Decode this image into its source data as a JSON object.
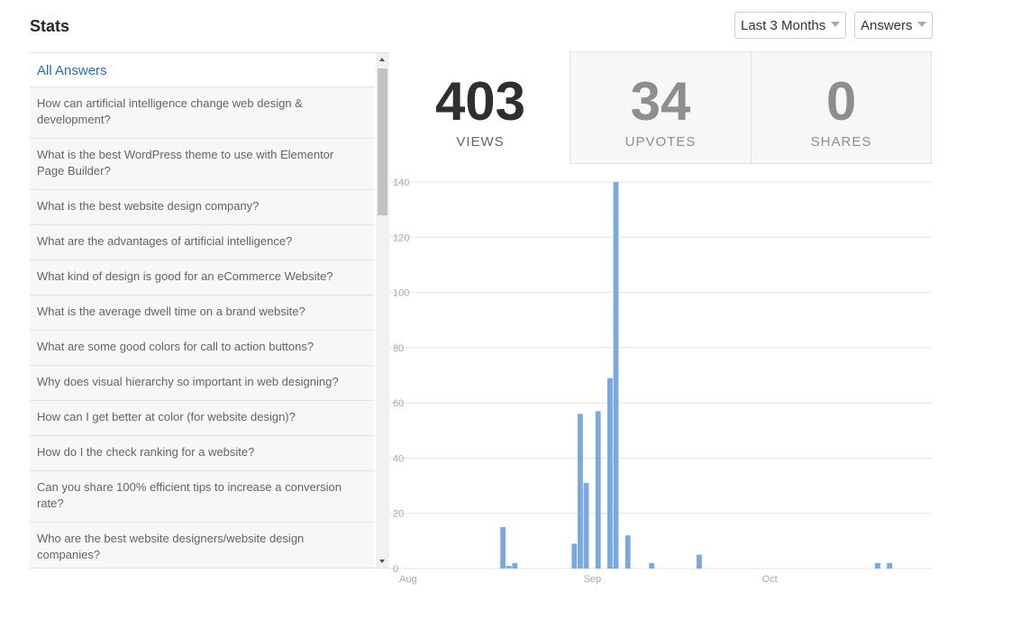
{
  "page": {
    "title": "Stats"
  },
  "filters": {
    "range": {
      "selected": "Last 3 Months"
    },
    "type": {
      "selected": "Answers"
    }
  },
  "list": {
    "header": "All Answers",
    "items": [
      "How can artificial intelligence change web design & development?",
      "What is the best WordPress theme to use with Elementor Page Builder?",
      "What is the best website design company?",
      "What are the advantages of artificial intelligence?",
      "What kind of design is good for an eCommerce Website?",
      "What is the average dwell time on a brand website?",
      "What are some good colors for call to action buttons?",
      "Why does visual hierarchy so important in web designing?",
      "How can I get better at color (for website design)?",
      "How do I the check ranking for a website?",
      "Can you share 100% efficient tips to increase a conversion rate?",
      "Who are the best website designers/website design companies?"
    ]
  },
  "stats": {
    "views": {
      "value": "403",
      "label": "VIEWS"
    },
    "upvotes": {
      "value": "34",
      "label": "UPVOTES"
    },
    "shares": {
      "value": "0",
      "label": "SHARES"
    }
  },
  "chart_data": {
    "type": "bar",
    "bar_color": "#7aa8e0",
    "grid": true,
    "ylim": [
      0,
      140
    ],
    "yticks": [
      "0",
      "20",
      "40",
      "60",
      "80",
      "100",
      "120",
      "140"
    ],
    "xticks": [
      {
        "label": "Aug",
        "day": 0
      },
      {
        "label": "Sep",
        "day": 31
      },
      {
        "label": "Oct",
        "day": 61
      }
    ],
    "x_start": "Aug",
    "bars": [
      {
        "day": 17,
        "value": 15
      },
      {
        "day": 18,
        "value": 1
      },
      {
        "day": 19,
        "value": 2
      },
      {
        "day": 29,
        "value": 9
      },
      {
        "day": 30,
        "value": 56
      },
      {
        "day": 31,
        "value": 31
      },
      {
        "day": 33,
        "value": 57
      },
      {
        "day": 35,
        "value": 69
      },
      {
        "day": 36,
        "value": 140
      },
      {
        "day": 38,
        "value": 12
      },
      {
        "day": 42,
        "value": 2
      },
      {
        "day": 50,
        "value": 5
      },
      {
        "day": 80,
        "value": 2
      },
      {
        "day": 82,
        "value": 2
      }
    ]
  }
}
